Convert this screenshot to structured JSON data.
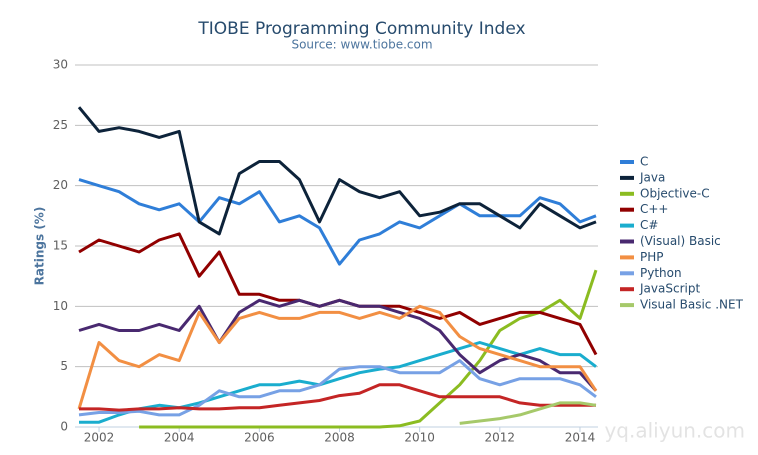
{
  "chart_data": {
    "type": "line",
    "title": "TIOBE Programming Community Index",
    "subtitle": "Source: www.tiobe.com",
    "y_label": "Ratings (%)",
    "watermark": "yq.aliyun.com",
    "grid": true,
    "legend": "right",
    "xlim": [
      2001.4,
      2014.45
    ],
    "xticks": [
      2002,
      2004,
      2006,
      2008,
      2010,
      2012,
      2014
    ],
    "ylim": [
      0,
      30
    ],
    "yticks": [
      0,
      5,
      10,
      15,
      20,
      25,
      30
    ],
    "x": [
      2001.5,
      2002,
      2002.5,
      2003,
      2003.5,
      2004,
      2004.5,
      2005,
      2005.5,
      2006,
      2006.5,
      2007,
      2007.5,
      2008,
      2008.5,
      2009,
      2009.5,
      2010,
      2010.5,
      2011,
      2011.5,
      2012,
      2012.5,
      2013,
      2013.5,
      2014,
      2014.4
    ],
    "series": [
      {
        "name": "C",
        "color": "#2f7ed8",
        "values": [
          20.5,
          20,
          19.5,
          18.5,
          18,
          18.5,
          17,
          19,
          18.5,
          19.5,
          17,
          17.5,
          16.5,
          13.5,
          15.5,
          16,
          17,
          16.5,
          17.5,
          18.5,
          17.5,
          17.5,
          17.5,
          19,
          18.5,
          17,
          17.5
        ]
      },
      {
        "name": "Java",
        "color": "#0d233a",
        "values": [
          26.5,
          24.5,
          24.8,
          24.5,
          24,
          24.5,
          17,
          16,
          21,
          22,
          22,
          20.5,
          17,
          20.5,
          19.5,
          19,
          19.5,
          17.5,
          17.8,
          18.5,
          18.5,
          17.5,
          16.5,
          18.5,
          17.5,
          16.5,
          17
        ]
      },
      {
        "name": "Objective-C",
        "color": "#8bbc21",
        "values": [
          null,
          null,
          null,
          0,
          0,
          0,
          0,
          0,
          0,
          0,
          0,
          0,
          0,
          0,
          0,
          0,
          0.1,
          0.5,
          2,
          3.5,
          5.5,
          8,
          9,
          9.5,
          10.5,
          9,
          13
        ]
      },
      {
        "name": "C++",
        "color": "#910000",
        "values": [
          14.5,
          15.5,
          15,
          14.5,
          15.5,
          16,
          12.5,
          14.5,
          11,
          11,
          10.5,
          10.5,
          10,
          10.5,
          10,
          10,
          10,
          9.5,
          9,
          9.5,
          8.5,
          9,
          9.5,
          9.5,
          9,
          8.5,
          6
        ]
      },
      {
        "name": "C#",
        "color": "#1aadce",
        "values": [
          0.4,
          0.4,
          1,
          1.5,
          1.8,
          1.6,
          2,
          2.5,
          3,
          3.5,
          3.5,
          3.8,
          3.5,
          4,
          4.5,
          4.8,
          5,
          5.5,
          6,
          6.5,
          7,
          6.5,
          6,
          6.5,
          6,
          6,
          5
        ]
      },
      {
        "name": "(Visual) Basic",
        "color": "#492970",
        "values": [
          8,
          8.5,
          8,
          8,
          8.5,
          8,
          10,
          7,
          9.5,
          10.5,
          10,
          10.5,
          10,
          10.5,
          10,
          10,
          9.5,
          9,
          8,
          6,
          4.5,
          5.5,
          6,
          5.5,
          4.5,
          4.5,
          3
        ]
      },
      {
        "name": "PHP",
        "color": "#f28f43",
        "values": [
          1.5,
          7,
          5.5,
          5,
          6,
          5.5,
          9.5,
          7,
          9,
          9.5,
          9,
          9,
          9.5,
          9.5,
          9,
          9.5,
          9,
          10,
          9.5,
          7.5,
          6.5,
          6,
          5.5,
          5,
          5,
          5,
          3
        ]
      },
      {
        "name": "Python",
        "color": "#77a1e5",
        "values": [
          1,
          1.2,
          1.2,
          1.3,
          1,
          1,
          1.8,
          3,
          2.5,
          2.5,
          3,
          3,
          3.5,
          4.8,
          5,
          5,
          4.5,
          4.5,
          4.5,
          5.5,
          4,
          3.5,
          4,
          4,
          4,
          3.5,
          2.5
        ]
      },
      {
        "name": "JavaScript",
        "color": "#c42525",
        "values": [
          1.5,
          1.5,
          1.4,
          1.5,
          1.5,
          1.6,
          1.5,
          1.5,
          1.6,
          1.6,
          1.8,
          2,
          2.2,
          2.6,
          2.8,
          3.5,
          3.5,
          3,
          2.5,
          2.5,
          2.5,
          2.5,
          2,
          1.8,
          1.8,
          1.8,
          1.8
        ]
      },
      {
        "name": "Visual Basic .NET",
        "color": "#a6c96a",
        "values": [
          null,
          null,
          null,
          null,
          null,
          null,
          null,
          null,
          null,
          null,
          null,
          null,
          null,
          null,
          null,
          null,
          null,
          null,
          null,
          0.3,
          0.5,
          0.7,
          1,
          1.5,
          2,
          2,
          1.8
        ]
      }
    ]
  }
}
